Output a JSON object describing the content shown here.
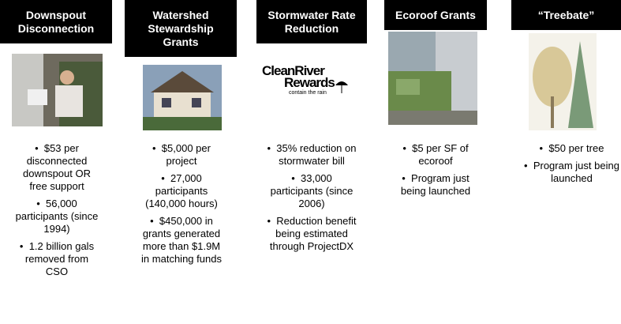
{
  "columns": [
    {
      "title": "Downspout Disconnection",
      "bullets": [
        "$53 per disconnected downspout OR free support",
        "56,000 participants (since 1994)",
        "1.2 billion gals removed from CSO"
      ]
    },
    {
      "title": "Watershed Stewardship Grants",
      "bullets": [
        "$5,000 per project",
        "27,000 participants (140,000 hours)",
        "$450,000 in grants generated more than $1.9M in matching funds"
      ]
    },
    {
      "title": "Stormwater Rate Reduction",
      "logo": {
        "line1": "CleanRiver",
        "line2": "Rewards",
        "tagline": "contain the rain"
      },
      "bullets": [
        "35% reduction on stormwater bill",
        "33,000 participants (since 2006)",
        "Reduction benefit being estimated through ProjectDX"
      ]
    },
    {
      "title": "Ecoroof Grants",
      "bullets": [
        "$5 per SF of ecoroof",
        "Program just being launched"
      ]
    },
    {
      "title": "“Treebate”",
      "bullets": [
        "$50 per tree",
        "Program just being launched"
      ]
    }
  ]
}
